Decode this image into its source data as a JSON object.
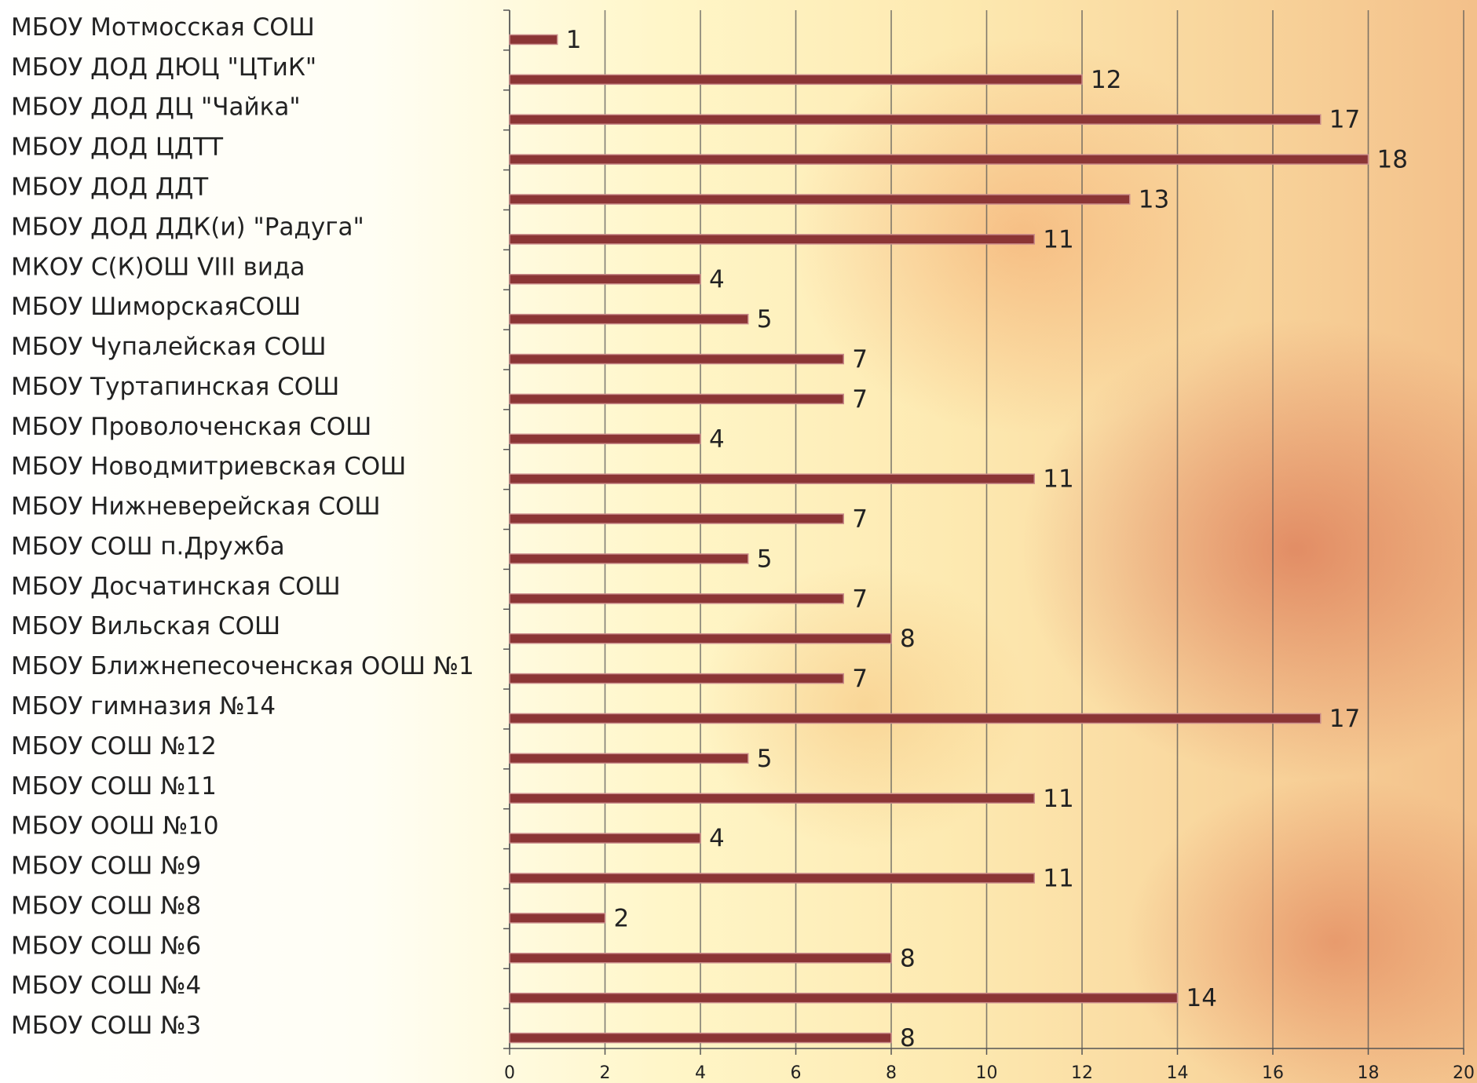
{
  "chart_data": {
    "type": "bar",
    "orientation": "horizontal",
    "categories": [
      "МБОУ Мотмосская СОШ",
      "МБОУ ДОД ДЮЦ \"ЦТиК\"",
      "МБОУ ДОД ДЦ \"Чайка\"",
      "МБОУ ДОД ЦДТТ",
      "МБОУ ДОД ДДТ",
      "МБОУ ДОД ДДК(и) \"Радуга\"",
      "МКОУ С(К)ОШ VIII вида",
      "МБОУ ШиморскаяСОШ",
      "МБОУ Чупалейская СОШ",
      "МБОУ Туртапинская СОШ",
      "МБОУ Проволоченская СОШ",
      "МБОУ Новодмитриевская СОШ",
      "МБОУ Нижневерейская СОШ",
      "МБОУ СОШ п.Дружба",
      "МБОУ Досчатинская СОШ",
      "МБОУ Вильская СОШ",
      "МБОУ Ближнепесоченская ООШ №1",
      "МБОУ гимназия №14",
      "МБОУ СОШ №12",
      "МБОУ СОШ №11",
      "МБОУ ООШ №10",
      "МБОУ СОШ №9",
      "МБОУ СОШ №8",
      "МБОУ СОШ №6",
      "МБОУ СОШ №4",
      "МБОУ СОШ №3"
    ],
    "values": [
      1,
      12,
      17,
      18,
      13,
      11,
      4,
      5,
      7,
      7,
      4,
      11,
      7,
      5,
      7,
      8,
      7,
      17,
      5,
      11,
      4,
      11,
      2,
      8,
      14,
      8
    ],
    "color": "#8b3535",
    "xlim": [
      0,
      20
    ],
    "xticks": [
      0,
      2,
      4,
      6,
      8,
      10,
      12,
      14,
      16,
      18,
      20
    ],
    "grid": true
  }
}
